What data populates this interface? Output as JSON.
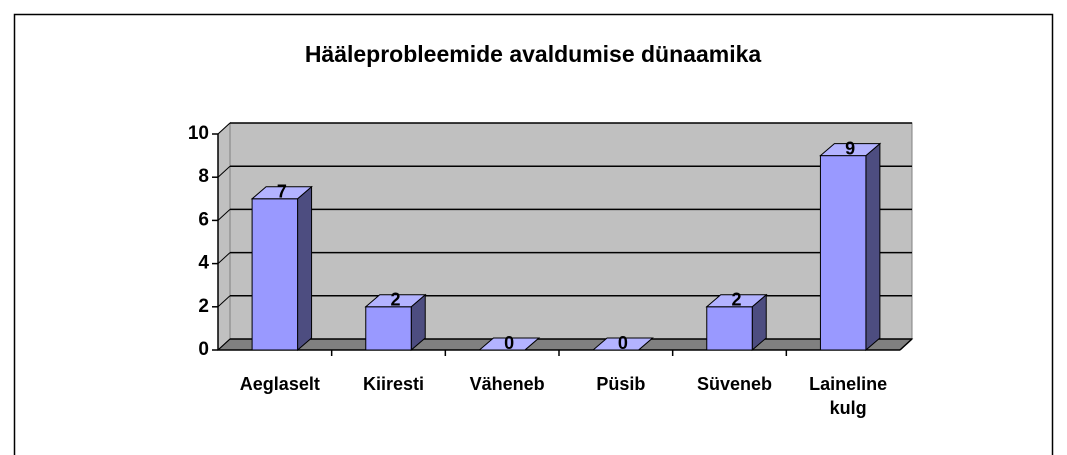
{
  "chart_data": {
    "type": "bar3d",
    "title": "Hääleprobleemide avaldumise dünaamika",
    "categories": [
      "Aeglaselt",
      "Kiiresti",
      "Väheneb",
      "Püsib",
      "Süveneb",
      "Laineline kulg"
    ],
    "values": [
      7,
      2,
      0,
      0,
      2,
      9
    ],
    "color": "#9999ff",
    "ylim": [
      0,
      10
    ],
    "yticks": [
      0,
      2,
      4,
      6,
      8,
      10
    ],
    "grid": true
  }
}
